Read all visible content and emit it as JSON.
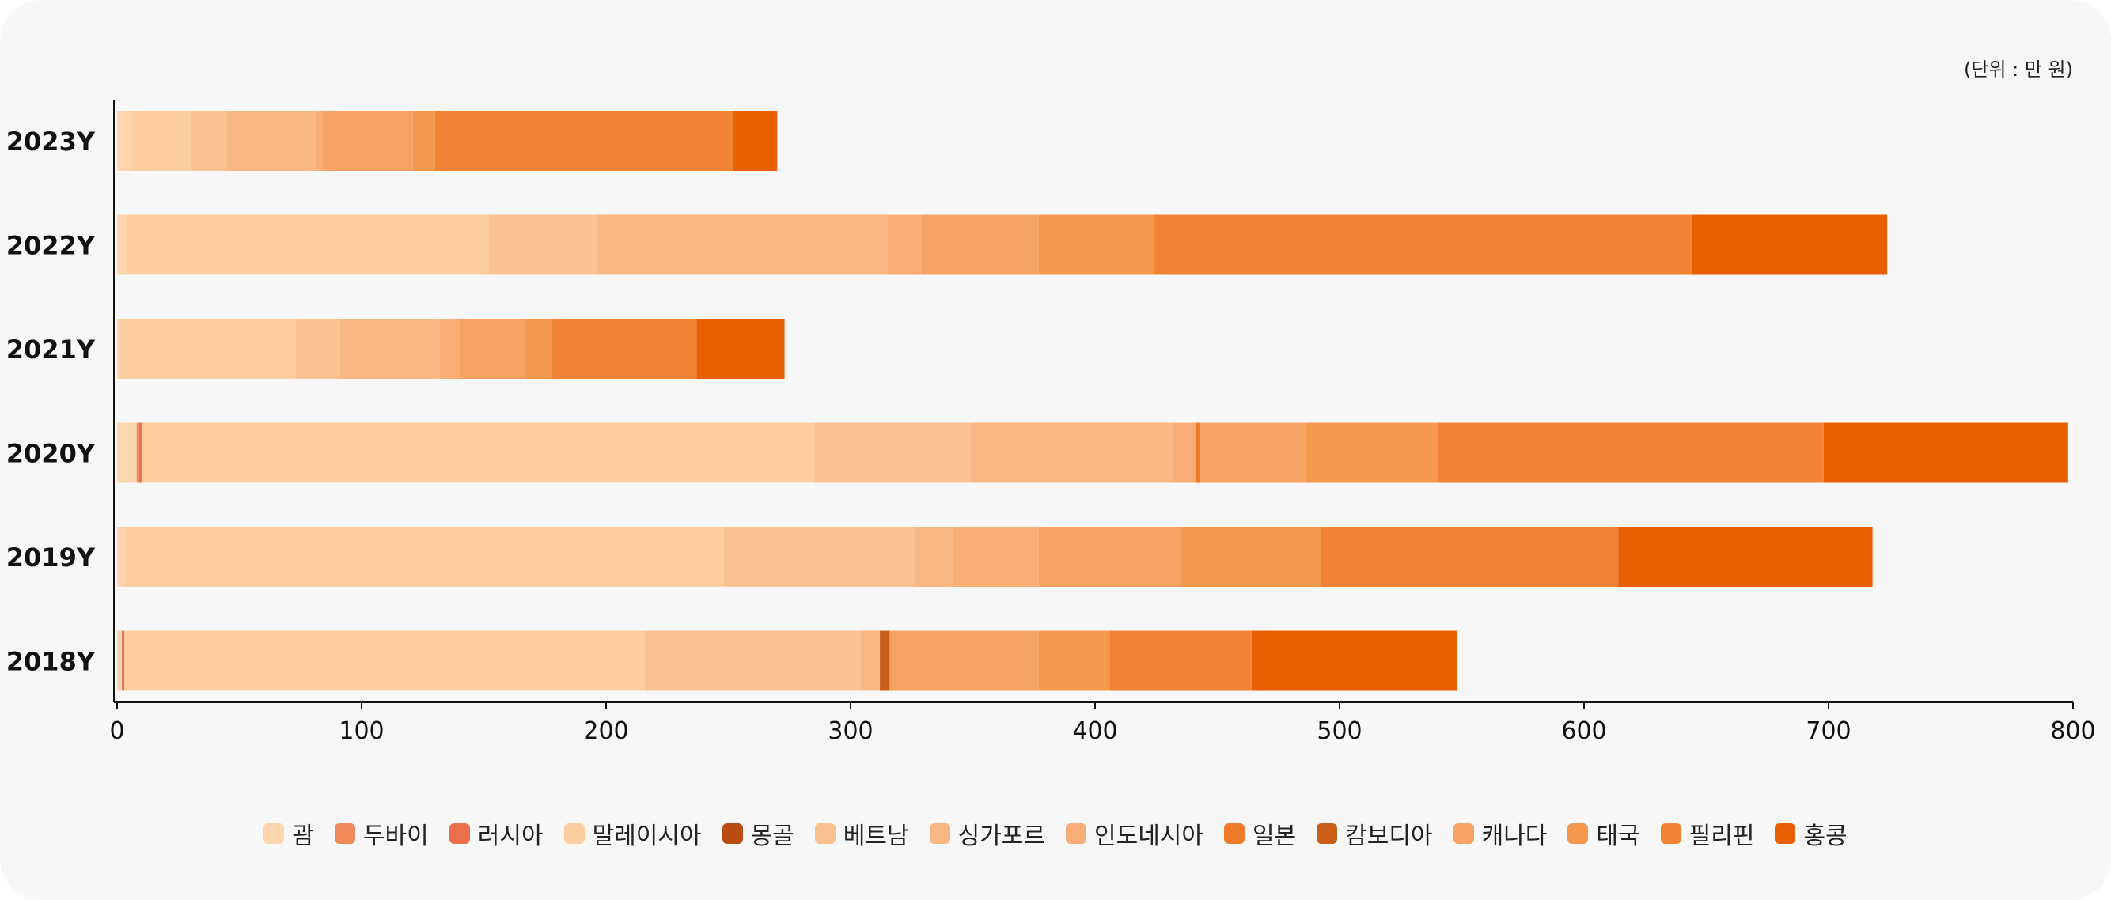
{
  "unit_label": "(단위 : 만 원)",
  "chart_data": {
    "type": "bar",
    "orientation": "horizontal",
    "stacked": true,
    "categories": [
      "2023Y",
      "2022Y",
      "2021Y",
      "2020Y",
      "2019Y",
      "2018Y"
    ],
    "xlim": [
      0,
      800
    ],
    "xticks": [
      0,
      100,
      200,
      300,
      400,
      500,
      600,
      700,
      800
    ],
    "grid": false,
    "legend_position": "bottom",
    "series": [
      {
        "name": "괌",
        "color": "#fdd5ae",
        "values": [
          6,
          4,
          1,
          8,
          3,
          2
        ]
      },
      {
        "name": "두바이",
        "color": "#f08a5a",
        "values": [
          0,
          0,
          0,
          1,
          0,
          0
        ]
      },
      {
        "name": "러시아",
        "color": "#ec6f4c",
        "values": [
          0,
          0,
          0,
          1,
          0,
          1
        ]
      },
      {
        "name": "말레이시아",
        "color": "#fccd9f",
        "values": [
          24,
          148,
          72,
          275,
          245,
          213
        ]
      },
      {
        "name": "몽골",
        "color": "#b94c10",
        "values": [
          0,
          0,
          0,
          0,
          0,
          0
        ]
      },
      {
        "name": "베트남",
        "color": "#fbc291",
        "values": [
          15,
          44,
          18,
          64,
          78,
          88
        ]
      },
      {
        "name": "싱가포르",
        "color": "#f9b783",
        "values": [
          36,
          119,
          41,
          83,
          16,
          8
        ]
      },
      {
        "name": "인도네시아",
        "color": "#f8ad76",
        "values": [
          3,
          14,
          8,
          9,
          35,
          0
        ]
      },
      {
        "name": "일본",
        "color": "#f07a2c",
        "values": [
          0,
          0,
          0,
          2,
          0,
          0
        ]
      },
      {
        "name": "캄보디아",
        "color": "#c95e18",
        "values": [
          0,
          0,
          0,
          0,
          0,
          4
        ]
      },
      {
        "name": "캐나다",
        "color": "#f6a267",
        "values": [
          37,
          48,
          27,
          43,
          58,
          61
        ]
      },
      {
        "name": "태국",
        "color": "#f4984f",
        "values": [
          9,
          47,
          11,
          54,
          57,
          29
        ]
      },
      {
        "name": "필리핀",
        "color": "#f08434",
        "values": [
          122,
          220,
          59,
          158,
          122,
          58
        ]
      },
      {
        "name": "홍콩",
        "color": "#e95f03",
        "values": [
          18,
          80,
          36,
          100,
          104,
          84
        ]
      }
    ]
  }
}
